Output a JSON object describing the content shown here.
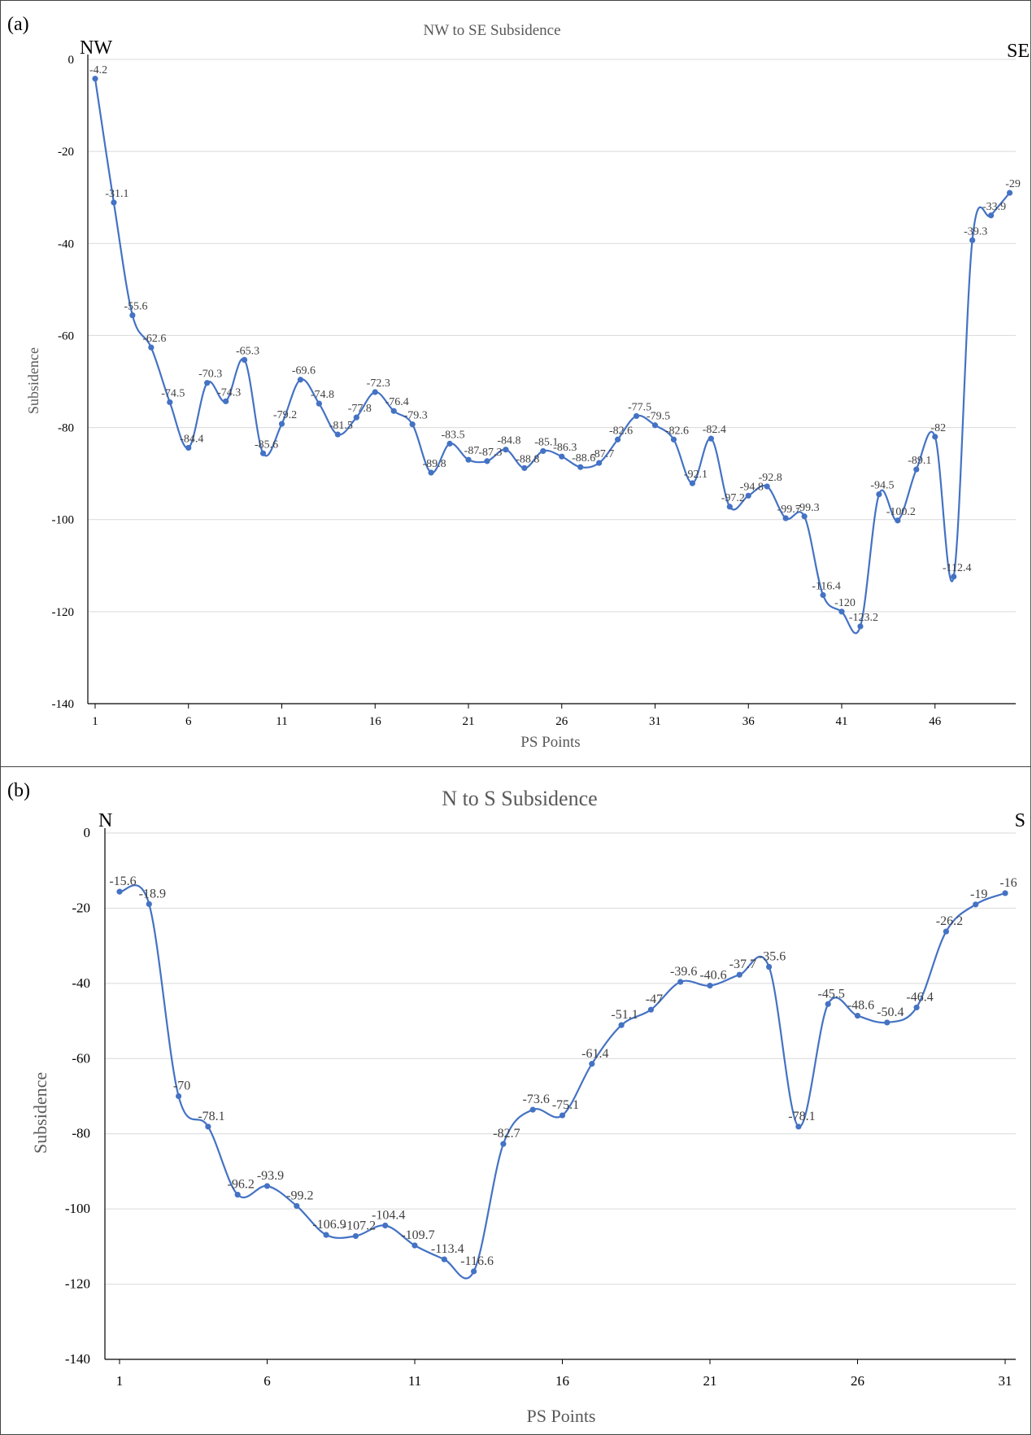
{
  "chart_data": [
    {
      "type": "line",
      "panel_label": "(a)",
      "title": "NW to SE Subsidence",
      "xlabel": "PS Points",
      "ylabel": "Subsidence",
      "left_end_label": "NW",
      "right_end_label": "SE",
      "ylim": [
        -140,
        0
      ],
      "yticks": [
        0,
        -20,
        -40,
        -60,
        -80,
        -100,
        -120,
        -140
      ],
      "xticks": [
        1,
        6,
        11,
        16,
        21,
        26,
        31,
        36,
        41,
        46
      ],
      "grid": "horizontal",
      "line_color": "#4472C4",
      "x": [
        1,
        2,
        3,
        4,
        5,
        6,
        7,
        8,
        9,
        10,
        11,
        12,
        13,
        14,
        15,
        16,
        17,
        18,
        19,
        20,
        21,
        22,
        23,
        24,
        25,
        26,
        27,
        28,
        29,
        30,
        31,
        32,
        33,
        34,
        35,
        36,
        37,
        38,
        39,
        40,
        41,
        42,
        43,
        44,
        45,
        46,
        47,
        48,
        49,
        50
      ],
      "values": [
        -4.2,
        -31.1,
        -55.6,
        -62.6,
        -74.5,
        -84.4,
        -70.3,
        -74.3,
        -65.3,
        -85.6,
        -79.2,
        -69.6,
        -74.8,
        -81.5,
        -77.8,
        -72.3,
        -76.4,
        -79.3,
        -89.8,
        -83.5,
        -87,
        -87.3,
        -84.8,
        -88.8,
        -85.1,
        -86.3,
        -88.6,
        -87.7,
        -82.6,
        -77.5,
        -79.5,
        -82.6,
        -92.1,
        -82.4,
        -97.2,
        -94.8,
        -92.8,
        -99.7,
        -99.3,
        -116.4,
        -120,
        -123.2,
        -94.5,
        -100.2,
        -89.1,
        -82,
        -112.4,
        -39.3,
        -33.9,
        -29
      ],
      "data_labels": [
        "-4.2",
        "-31.1",
        "-55.6",
        "-62.6",
        "-74.5",
        "-84.4",
        "-70.3",
        "-74.3",
        "-65.3",
        "-85.6",
        "-79.2",
        "-69.6",
        "-74.8",
        "-81.5",
        "-77.8",
        "-72.3",
        "-76.4",
        "-79.3",
        "-89.8",
        "-83.5",
        "-87",
        "-87.3",
        "-84.8",
        "-88.8",
        "-85.1",
        "-86.3",
        "-88.6",
        "-87.7",
        "-82.6",
        "-77.5",
        "-79.5",
        "-82.6",
        "-92.1",
        "-82.4",
        "-97.2",
        "-94.8",
        "-92.8",
        "-99.7",
        "-99.3",
        "-116.4",
        "-120",
        "-123.2",
        "-94.5",
        "-100.2",
        "-89.1",
        "-82",
        "-112.4",
        "-39.3",
        "-33.9",
        "-29"
      ]
    },
    {
      "type": "line",
      "panel_label": "(b)",
      "title": "N to S Subsidence",
      "xlabel": "PS Points",
      "ylabel": "Subsidence",
      "left_end_label": "N",
      "right_end_label": "S",
      "ylim": [
        -140,
        0
      ],
      "yticks": [
        0,
        -20,
        -40,
        -60,
        -80,
        -100,
        -120,
        -140
      ],
      "xticks": [
        1,
        6,
        11,
        16,
        21,
        26,
        31
      ],
      "grid": "horizontal",
      "line_color": "#4472C4",
      "x": [
        1,
        2,
        3,
        4,
        5,
        6,
        7,
        8,
        9,
        10,
        11,
        12,
        13,
        14,
        15,
        16,
        17,
        18,
        19,
        20,
        21,
        22,
        23,
        24,
        25,
        26,
        27,
        28,
        29,
        30,
        31
      ],
      "values": [
        -15.6,
        -18.9,
        -70,
        -78.1,
        -96.2,
        -93.9,
        -99.2,
        -106.9,
        -107.2,
        -104.4,
        -109.7,
        -113.4,
        -116.6,
        -82.7,
        -73.6,
        -75.1,
        -61.4,
        -51.1,
        -47,
        -39.6,
        -40.6,
        -37.7,
        -35.6,
        -78.1,
        -45.5,
        -48.6,
        -50.4,
        -46.4,
        -26.2,
        -19,
        -16
      ],
      "data_labels": [
        "-15.6",
        "-18.9",
        "-70",
        "-78.1",
        "-96.2",
        "-93.9",
        "-99.2",
        "-106.9",
        "-107.2",
        "-104.4",
        "-109.7",
        "-113.4",
        "-116.6",
        "-82.7",
        "-73.6",
        "-75.1",
        "-61.4",
        "-51.1",
        "-47",
        "-39.6",
        "-40.6",
        "-37.7",
        "-35.6",
        "-78.1",
        "-45.5",
        "-48.6",
        "-50.4",
        "-46.4",
        "-26.2",
        "-19",
        "-16"
      ]
    }
  ]
}
